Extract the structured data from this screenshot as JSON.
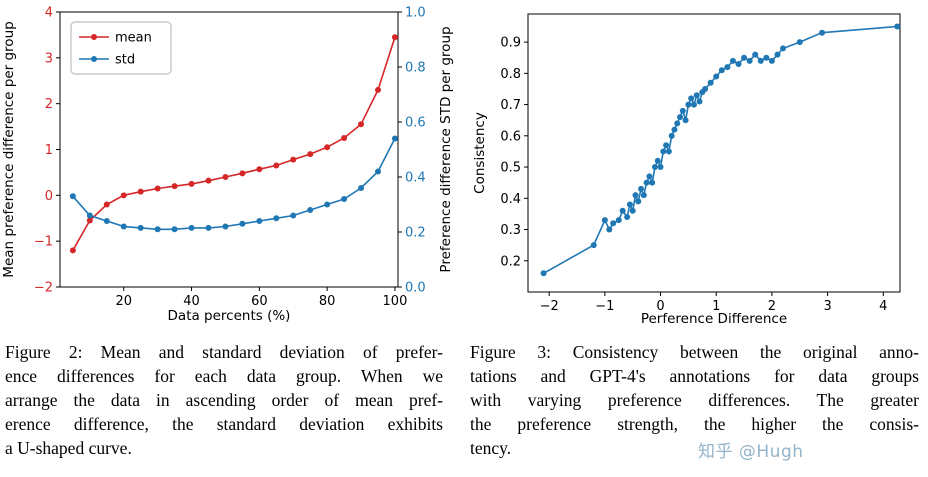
{
  "watermark": "知乎 @Hugh",
  "captions": {
    "fig2": {
      "lines": [
        "Figure 2: Mean and standard deviation of prefer-",
        "ence differences for each data group. When we",
        "arrange the data in ascending order of mean pref-",
        "erence difference, the standard deviation exhibits",
        "a U-shaped curve."
      ]
    },
    "fig3": {
      "lines": [
        "Figure 3: Consistency between the original anno-",
        "tations and GPT-4's annotations for data groups",
        "with varying preference differences. The greater",
        "the preference strength, the higher the consis-",
        "tency."
      ]
    }
  },
  "colors": {
    "mean_red": "#d62728",
    "std_blue": "#1f77b4",
    "axis_black": "#000000"
  },
  "chart_data": [
    {
      "id": "fig2",
      "type": "line",
      "title": "",
      "xlabel": "Data percents (%)",
      "ylabel_left": "Mean preference difference per group",
      "ylabel_right": "Preference difference STD per group",
      "xlim": [
        1.2,
        100.9
      ],
      "ylim_left": [
        -2,
        4
      ],
      "ylim_right": [
        0.0,
        1.0
      ],
      "xticks": [
        20,
        40,
        60,
        80,
        100
      ],
      "xtick_labels": [
        "20",
        "40",
        "60",
        "80",
        "100"
      ],
      "yticks_left": [
        -2,
        -1,
        0,
        1,
        2,
        3,
        4
      ],
      "ytick_labels_left": [
        "−2",
        "−1",
        "0",
        "1",
        "2",
        "3",
        "4"
      ],
      "yticks_right": [
        0.0,
        0.2,
        0.4,
        0.6,
        0.8,
        1.0
      ],
      "ytick_labels_right": [
        "0.0",
        "0.2",
        "0.4",
        "0.6",
        "0.8",
        "1.0"
      ],
      "legend": [
        "mean",
        "std"
      ],
      "legend_position": "upper-left",
      "grid": false,
      "x": [
        5,
        10,
        15,
        20,
        25,
        30,
        35,
        40,
        45,
        50,
        55,
        60,
        65,
        70,
        75,
        80,
        85,
        90,
        95,
        100
      ],
      "series": [
        {
          "name": "mean",
          "axis": "left",
          "color": "#d62728",
          "values": [
            -1.2,
            -0.55,
            -0.2,
            0.0,
            0.08,
            0.15,
            0.2,
            0.25,
            0.32,
            0.4,
            0.48,
            0.57,
            0.65,
            0.78,
            0.9,
            1.05,
            1.25,
            1.55,
            2.3,
            3.45
          ]
        },
        {
          "name": "std",
          "axis": "right",
          "color": "#1f77b4",
          "values": [
            0.33,
            0.26,
            0.24,
            0.22,
            0.215,
            0.21,
            0.21,
            0.215,
            0.215,
            0.22,
            0.23,
            0.24,
            0.25,
            0.26,
            0.28,
            0.3,
            0.32,
            0.36,
            0.42,
            0.54
          ]
        }
      ]
    },
    {
      "id": "fig3",
      "type": "line",
      "title": "",
      "xlabel": "Perference Difference",
      "ylabel": "Consistency",
      "xlim": [
        -2.38,
        4.3
      ],
      "ylim": [
        0.1,
        0.99
      ],
      "xticks": [
        -2,
        -1,
        0,
        1,
        2,
        3,
        4
      ],
      "xtick_labels": [
        "−2",
        "−1",
        "0",
        "1",
        "2",
        "3",
        "4"
      ],
      "yticks": [
        0.2,
        0.3,
        0.4,
        0.5,
        0.6,
        0.7,
        0.8,
        0.9
      ],
      "ytick_labels": [
        "0.2",
        "0.3",
        "0.4",
        "0.5",
        "0.6",
        "0.7",
        "0.8",
        "0.9"
      ],
      "grid": false,
      "series_color": "#1f77b4",
      "points": [
        [
          -2.1,
          0.16
        ],
        [
          -1.2,
          0.25
        ],
        [
          -1.0,
          0.33
        ],
        [
          -0.92,
          0.3
        ],
        [
          -0.85,
          0.32
        ],
        [
          -0.75,
          0.33
        ],
        [
          -0.68,
          0.36
        ],
        [
          -0.6,
          0.34
        ],
        [
          -0.55,
          0.38
        ],
        [
          -0.5,
          0.36
        ],
        [
          -0.45,
          0.41
        ],
        [
          -0.4,
          0.39
        ],
        [
          -0.35,
          0.43
        ],
        [
          -0.3,
          0.41
        ],
        [
          -0.25,
          0.45
        ],
        [
          -0.2,
          0.47
        ],
        [
          -0.15,
          0.45
        ],
        [
          -0.1,
          0.5
        ],
        [
          -0.05,
          0.52
        ],
        [
          0.0,
          0.5
        ],
        [
          0.05,
          0.55
        ],
        [
          0.1,
          0.57
        ],
        [
          0.15,
          0.55
        ],
        [
          0.2,
          0.6
        ],
        [
          0.25,
          0.62
        ],
        [
          0.3,
          0.64
        ],
        [
          0.35,
          0.66
        ],
        [
          0.4,
          0.68
        ],
        [
          0.45,
          0.65
        ],
        [
          0.5,
          0.7
        ],
        [
          0.55,
          0.72
        ],
        [
          0.6,
          0.7
        ],
        [
          0.65,
          0.73
        ],
        [
          0.7,
          0.71
        ],
        [
          0.75,
          0.74
        ],
        [
          0.8,
          0.75
        ],
        [
          0.9,
          0.77
        ],
        [
          1.0,
          0.79
        ],
        [
          1.1,
          0.81
        ],
        [
          1.2,
          0.82
        ],
        [
          1.3,
          0.84
        ],
        [
          1.4,
          0.83
        ],
        [
          1.5,
          0.85
        ],
        [
          1.6,
          0.84
        ],
        [
          1.7,
          0.86
        ],
        [
          1.8,
          0.84
        ],
        [
          1.9,
          0.85
        ],
        [
          2.0,
          0.84
        ],
        [
          2.1,
          0.86
        ],
        [
          2.2,
          0.88
        ],
        [
          2.5,
          0.9
        ],
        [
          2.9,
          0.93
        ],
        [
          4.25,
          0.95
        ]
      ]
    }
  ]
}
